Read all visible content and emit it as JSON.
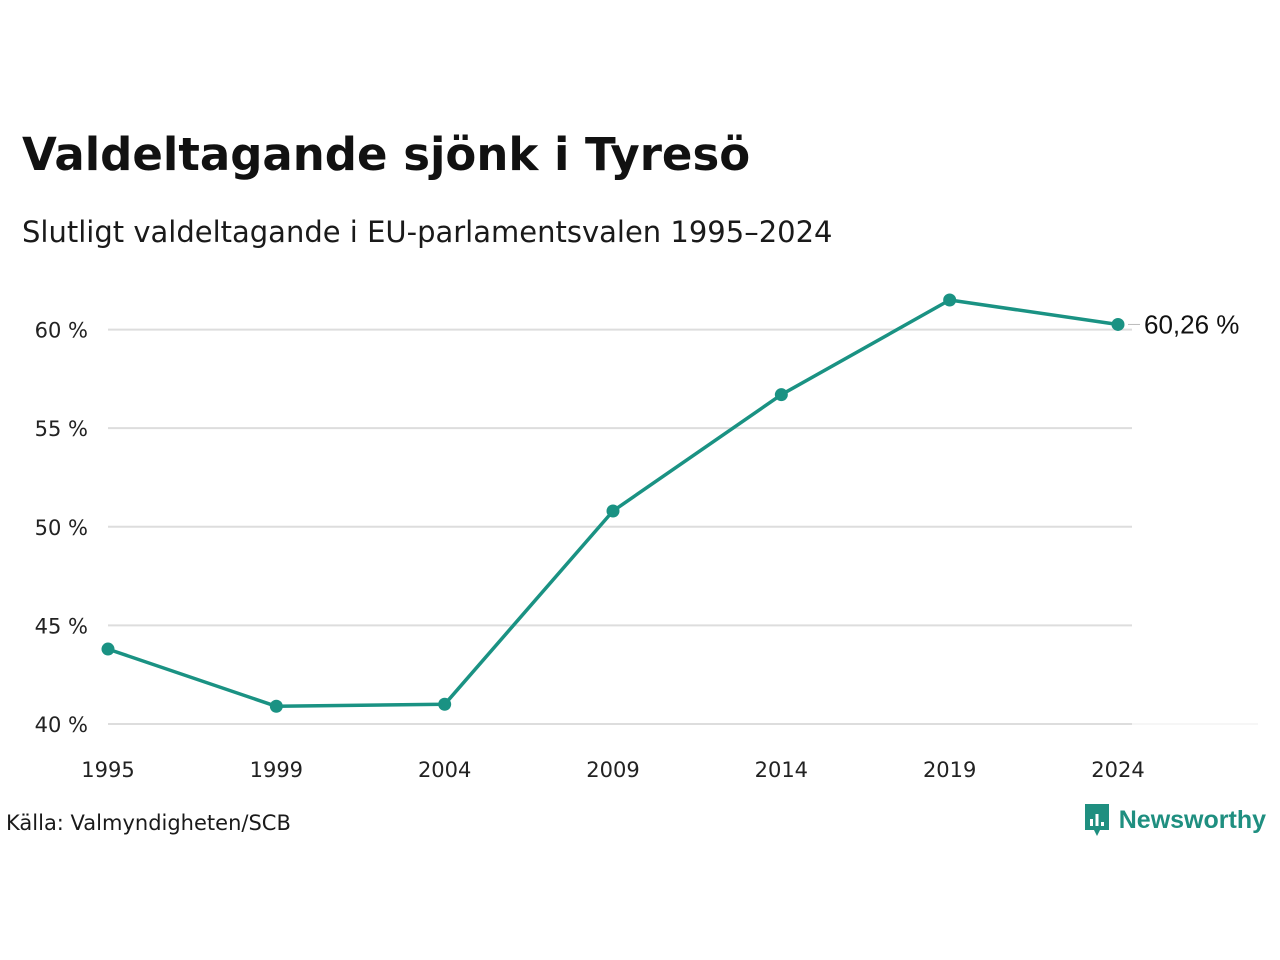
{
  "title": "Valdeltagande sjönk i Tyresö",
  "subtitle": "Slutligt valdeltagande i EU-parlamentsvalen 1995–2024",
  "source": "Källa: Valmyndigheten/SCB",
  "brand": {
    "name": "Newsworthy",
    "icon": "newsworthy-logo-icon",
    "color": "#1f8f80"
  },
  "chart_data": {
    "type": "line",
    "x": [
      "1995",
      "1999",
      "2004",
      "2009",
      "2014",
      "2019",
      "2024"
    ],
    "y": [
      43.8,
      40.9,
      41.0,
      50.8,
      56.7,
      61.5,
      60.26
    ],
    "ylim": [
      40,
      61.5
    ],
    "yticks": [
      40,
      45,
      50,
      55,
      60
    ],
    "ytick_labels": [
      "40 %",
      "45 %",
      "50 %",
      "55 %",
      "60 %"
    ],
    "last_value_label": "60,26 %",
    "grid": true,
    "line_color": "#1a9283",
    "grid_color": "#dddddd"
  }
}
